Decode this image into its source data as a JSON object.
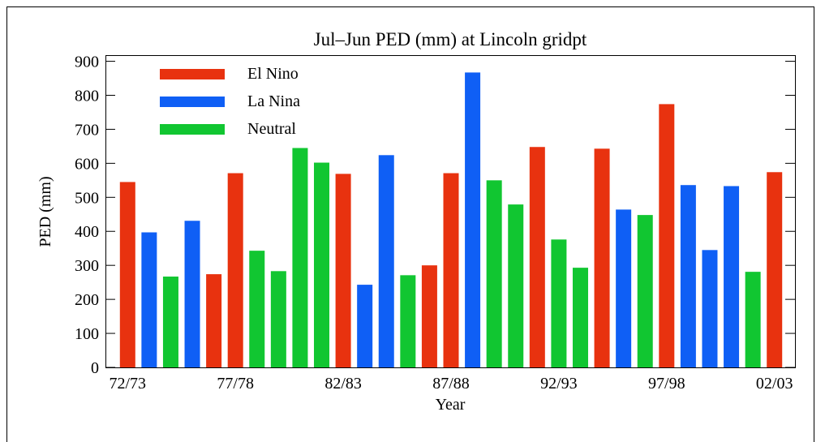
{
  "chart_data": {
    "type": "bar",
    "title": "Jul–Jun PED (mm) at Lincoln gridpt",
    "x_label": "Year",
    "y_label": "PED (mm)",
    "categories": [
      "72/73",
      null,
      null,
      null,
      null,
      "77/78",
      null,
      null,
      null,
      null,
      "82/83",
      null,
      null,
      null,
      null,
      "87/88",
      null,
      null,
      null,
      null,
      "92/93",
      null,
      null,
      null,
      null,
      "97/98",
      null,
      null,
      null,
      null,
      "02/03"
    ],
    "series": [
      {
        "name": "El Nino",
        "color": "#e8320f",
        "values": [
          545,
          null,
          null,
          null,
          274,
          571,
          null,
          null,
          null,
          null,
          569,
          null,
          null,
          null,
          300,
          571,
          null,
          null,
          null,
          648,
          null,
          null,
          643,
          null,
          null,
          774,
          null,
          null,
          null,
          null,
          574
        ]
      },
      {
        "name": "La Nina",
        "color": "#0f5ff5",
        "values": [
          null,
          397,
          null,
          431,
          null,
          null,
          null,
          null,
          null,
          null,
          null,
          243,
          624,
          null,
          null,
          null,
          867,
          null,
          null,
          null,
          null,
          null,
          null,
          464,
          null,
          null,
          536,
          345,
          533,
          null,
          null
        ]
      },
      {
        "name": "Neutral",
        "color": "#11c631",
        "values": [
          null,
          null,
          267,
          null,
          null,
          null,
          343,
          283,
          645,
          602,
          null,
          null,
          null,
          271,
          null,
          null,
          null,
          550,
          479,
          null,
          376,
          293,
          null,
          null,
          448,
          null,
          null,
          null,
          null,
          281,
          null
        ]
      }
    ],
    "ylim": [
      0,
      918
    ],
    "yticks": [
      0,
      100,
      200,
      300,
      400,
      500,
      600,
      700,
      800,
      900
    ],
    "legend": "upper left"
  }
}
